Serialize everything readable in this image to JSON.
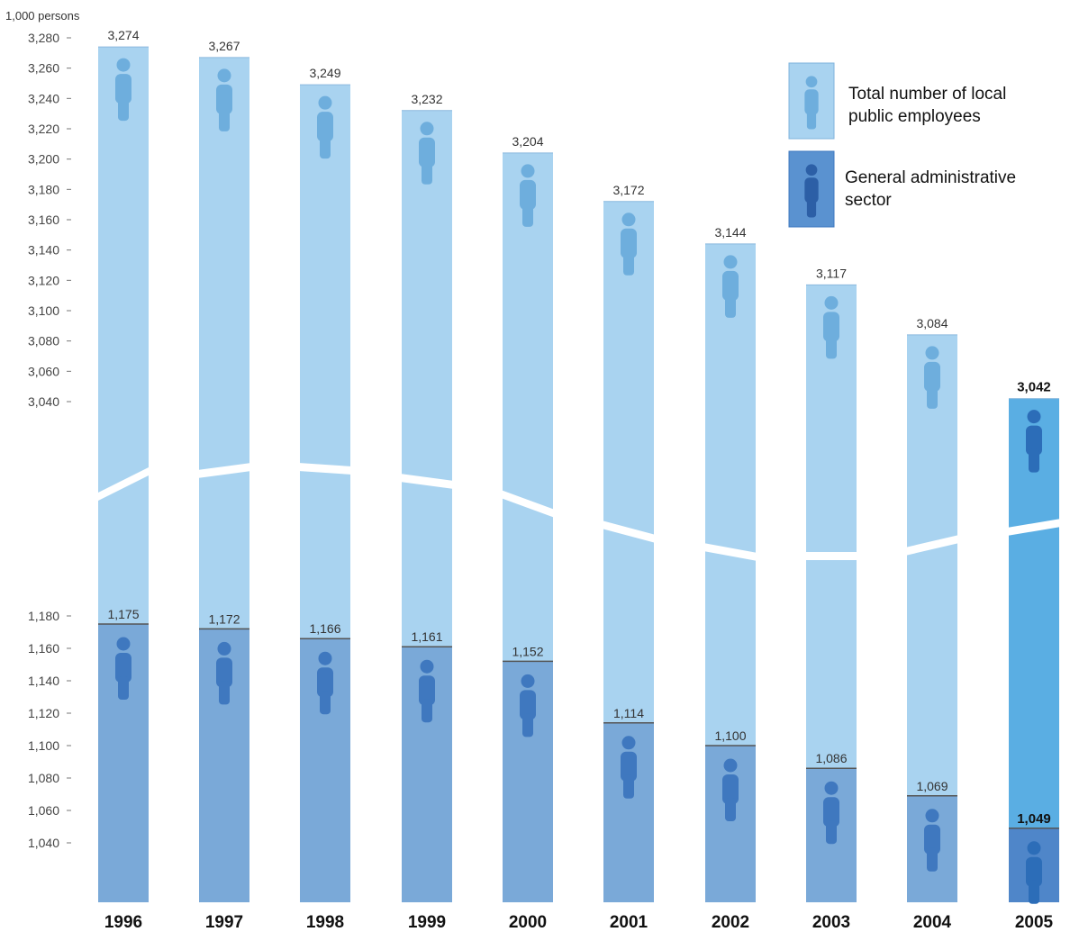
{
  "chart_data": {
    "type": "bar",
    "unit_label": "1,000 persons",
    "categories": [
      "1996",
      "1997",
      "1998",
      "1999",
      "2000",
      "2001",
      "2002",
      "2003",
      "2004",
      "2005"
    ],
    "series": [
      {
        "name": "Total number of local public employees",
        "values": [
          3274,
          3267,
          3249,
          3232,
          3204,
          3172,
          3144,
          3117,
          3084,
          3042
        ],
        "labels": [
          "3,274",
          "3,267",
          "3,249",
          "3,232",
          "3,204",
          "3,172",
          "3,144",
          "3,117",
          "3,084",
          "3,042"
        ]
      },
      {
        "name": "General administrative sector",
        "values": [
          1175,
          1172,
          1166,
          1161,
          1152,
          1114,
          1100,
          1086,
          1069,
          1049
        ],
        "labels": [
          "1,175",
          "1,172",
          "1,166",
          "1,161",
          "1,152",
          "1,114",
          "1,100",
          "1,086",
          "1,069",
          "1,049"
        ]
      }
    ],
    "axis_break": true,
    "upper_ticks": [
      "3,280",
      "3,260",
      "3,240",
      "3,220",
      "3,200",
      "3,180",
      "3,160",
      "3,140",
      "3,120",
      "3,100",
      "3,080",
      "3,060",
      "3,040"
    ],
    "lower_ticks": [
      "1,180",
      "1,160",
      "1,140",
      "1,120",
      "1,100",
      "1,080",
      "1,060",
      "1,040"
    ],
    "upper_ylim": [
      3040,
      3280
    ],
    "lower_ylim": [
      1040,
      1180
    ],
    "legend_position": "top-right",
    "colors": {
      "total_bar": "#a9d3f0",
      "total_bar_2005": "#5aaee3",
      "admin_bar": "#7aa9d8",
      "admin_bar_2005": "#4f86c9",
      "figure_total": "#6eaedd",
      "figure_admin": "#3f78bf",
      "figure_2005": "#2c6db8"
    }
  }
}
